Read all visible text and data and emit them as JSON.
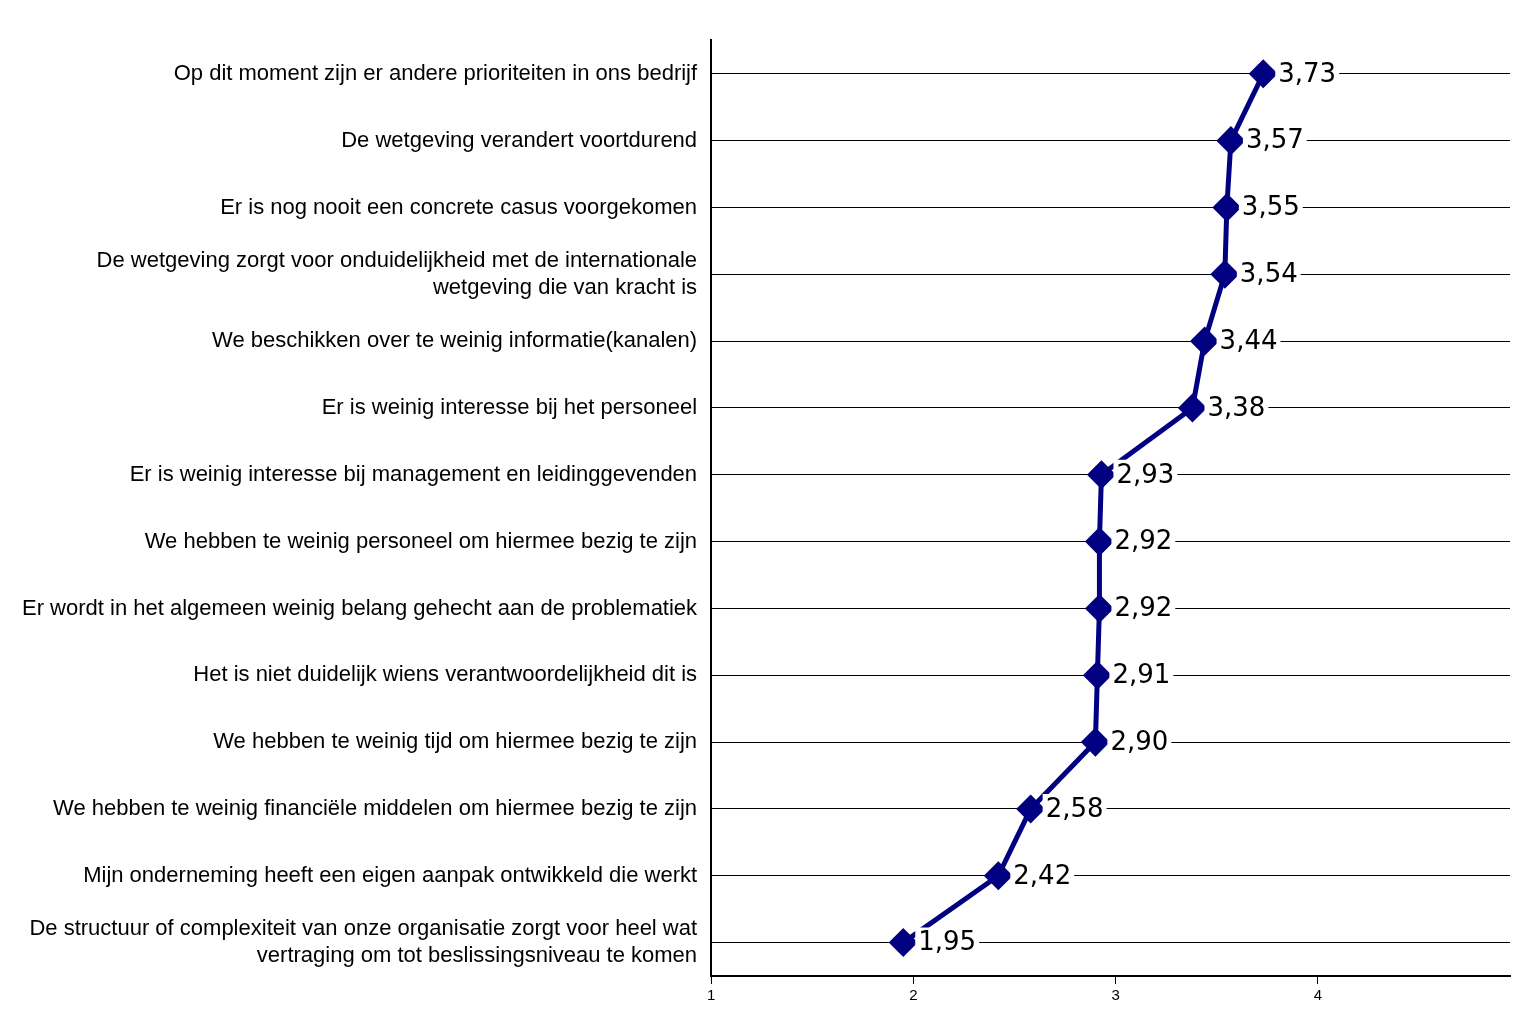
{
  "chart_data": {
    "type": "line",
    "orientation": "horizontal",
    "categories": [
      "Op dit moment zijn er andere prioriteiten in ons bedrijf",
      "De wetgeving verandert voortdurend",
      "Er is nog nooit een concrete casus voorgekomen",
      "De wetgeving zorgt voor onduidelijkheid met de internationale wetgeving die van kracht is",
      "We beschikken over te weinig informatie(kanalen)",
      "Er is weinig interesse bij het personeel",
      "Er is weinig interesse bij management en leidinggevenden",
      "We hebben te weinig personeel om hiermee bezig te zijn",
      "Er wordt in het algemeen weinig belang gehecht aan de problematiek",
      "Het is niet duidelijk wiens verantwoordelijkheid dit is",
      "We hebben te weinig tijd om hiermee bezig te zijn",
      "We hebben te weinig financiële middelen om hiermee bezig te zijn",
      "Mijn onderneming heeft een eigen aanpak ontwikkeld die werkt",
      "De structuur of complexiteit van onze organisatie zorgt voor heel wat vertraging om tot beslissingsniveau te komen"
    ],
    "values": [
      3.73,
      3.57,
      3.55,
      3.54,
      3.44,
      3.38,
      2.93,
      2.92,
      2.92,
      2.91,
      2.9,
      2.58,
      2.42,
      1.95
    ],
    "value_labels": [
      "3,73",
      "3,57",
      "3,55",
      "3,54",
      "3,44",
      "3,38",
      "2,93",
      "2,92",
      "2,92",
      "2,91",
      "2,90",
      "2,58",
      "2,42",
      "1,95"
    ],
    "color": "#000080",
    "marker": "diamond",
    "xlim": [
      1,
      4.95
    ],
    "xticks": [
      1,
      2,
      3,
      4
    ],
    "grid": "y"
  }
}
